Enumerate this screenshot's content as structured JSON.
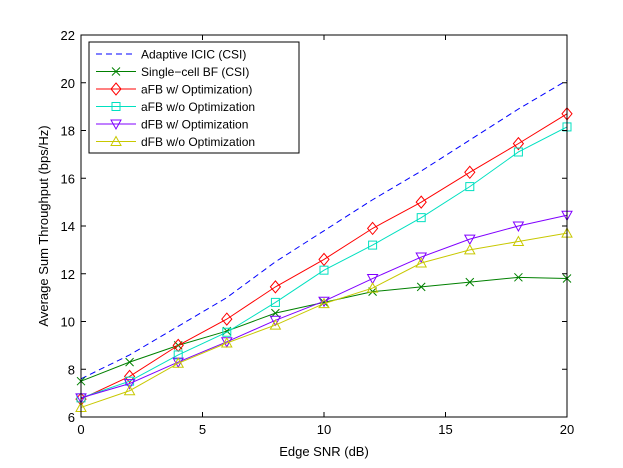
{
  "chart_data": {
    "type": "line",
    "title": "",
    "xlabel": "Edge SNR (dB)",
    "ylabel": "Average Sum Throughput (bps/Hz)",
    "xlim": [
      0,
      20
    ],
    "ylim": [
      6,
      22
    ],
    "xticks": [
      0,
      5,
      10,
      15,
      20
    ],
    "yticks": [
      6,
      8,
      10,
      12,
      14,
      16,
      18,
      20,
      22
    ],
    "grid": false,
    "legend_position": "top-left",
    "x": [
      0,
      2,
      4,
      6,
      8,
      10,
      12,
      14,
      16,
      18,
      20
    ],
    "series": [
      {
        "name": "Adaptive ICIC (CSI)",
        "color": "#0000ff",
        "line": "dashed",
        "marker": "none",
        "values": [
          7.6,
          8.6,
          9.8,
          11.0,
          12.5,
          13.8,
          15.1,
          16.3,
          17.6,
          18.9,
          20.1
        ]
      },
      {
        "name": "Single−cell BF (CSI)",
        "color": "#008000",
        "line": "solid",
        "marker": "x",
        "values": [
          7.5,
          8.3,
          9.0,
          9.6,
          10.35,
          10.8,
          11.25,
          11.45,
          11.65,
          11.85,
          11.8
        ]
      },
      {
        "name": "aFB w/ Optimization)",
        "color": "#ff0000",
        "line": "solid",
        "marker": "diamond",
        "values": [
          6.75,
          7.7,
          9.0,
          10.1,
          11.45,
          12.6,
          13.9,
          15.0,
          16.25,
          17.45,
          18.7
        ]
      },
      {
        "name": "aFB w/o Optimization",
        "color": "#00e0c0",
        "line": "solid",
        "marker": "square",
        "values": [
          6.8,
          7.5,
          8.6,
          9.55,
          10.8,
          12.15,
          13.2,
          14.35,
          15.65,
          17.1,
          18.15
        ]
      },
      {
        "name": "dFB w/ Optimization",
        "color": "#8000ff",
        "line": "solid",
        "marker": "triangle-down",
        "values": [
          6.8,
          7.4,
          8.3,
          9.15,
          10.05,
          10.85,
          11.8,
          12.7,
          13.45,
          14.0,
          14.45
        ]
      },
      {
        "name": "dFB w/o Optimization",
        "color": "#c8c800",
        "line": "solid",
        "marker": "triangle-up",
        "values": [
          6.4,
          7.1,
          8.25,
          9.1,
          9.85,
          10.75,
          11.4,
          12.45,
          13.0,
          13.35,
          13.7
        ]
      }
    ]
  }
}
